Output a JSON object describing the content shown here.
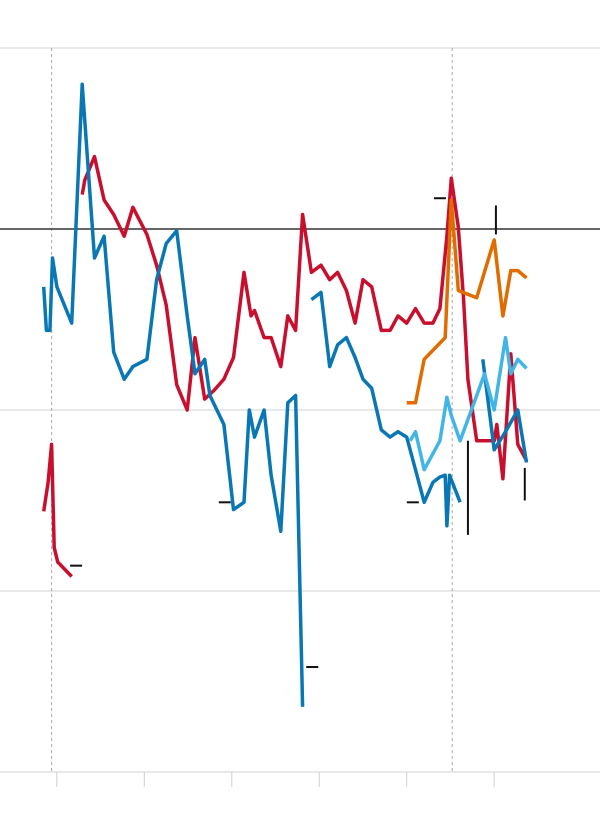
{
  "chart_data": {
    "type": "line",
    "xlim": [
      0.35,
      7.21
    ],
    "xticks": [
      1,
      2,
      3,
      4,
      5,
      6
    ],
    "ylim": [
      -3,
      1
    ],
    "yticks": [
      -3,
      -2,
      -1,
      0,
      1
    ],
    "grid": true,
    "baseline": 0,
    "vlines": [
      0.94,
      5.52
    ],
    "series": [
      {
        "color": "#c8102e",
        "x": [
          0.85,
          0.9,
          0.94,
          0.97,
          1.01,
          1.17,
          1.23,
          1.29,
          1.32,
          1.43,
          1.54,
          1.65,
          1.77,
          1.87,
          2.03,
          2.14,
          2.25,
          2.37,
          2.49,
          2.58,
          2.69,
          2.8,
          2.91,
          3.02,
          3.14,
          3.22,
          3.26,
          3.37,
          3.45,
          3.56,
          3.64,
          3.73,
          3.81,
          3.91,
          4.02,
          4.12,
          4.21,
          4.31,
          4.41,
          4.5,
          4.6,
          4.71,
          4.81,
          4.9,
          5.0,
          5.1,
          5.2,
          5.3,
          5.38,
          5.46,
          5.51,
          5.59,
          5.65,
          5.7,
          5.8,
          5.89,
          6.0,
          6.03,
          6.1,
          6.19,
          6.27,
          6.37
        ],
        "values": [
          -1.56,
          -1.4,
          -1.19,
          -1.76,
          -1.84,
          -1.92,
          null,
          0.19,
          0.27,
          0.4,
          0.16,
          0.08,
          -0.04,
          0.12,
          -0.03,
          -0.2,
          -0.42,
          -0.86,
          -1.0,
          -0.6,
          -0.94,
          -0.89,
          -0.83,
          -0.71,
          -0.24,
          -0.48,
          -0.45,
          -0.6,
          -0.6,
          -0.76,
          -0.48,
          -0.56,
          0.08,
          -0.24,
          -0.2,
          -0.28,
          -0.24,
          -0.34,
          -0.52,
          -0.28,
          -0.32,
          -0.56,
          -0.56,
          -0.48,
          -0.52,
          -0.44,
          -0.52,
          -0.52,
          -0.44,
          -0.04,
          0.28,
          0.01,
          -0.39,
          -0.83,
          -1.17,
          -1.17,
          -1.17,
          -1.08,
          -1.38,
          -0.69,
          -1.19,
          -1.28
        ]
      },
      {
        "color": "#0a77b5",
        "x": [
          0.85,
          0.88,
          0.92,
          0.95,
          1.0,
          1.17,
          1.29,
          1.43,
          1.54,
          1.65,
          1.77,
          1.87,
          2.03,
          2.14,
          2.25,
          2.37,
          2.49,
          2.58,
          2.69,
          2.75,
          2.91,
          3.02,
          3.14,
          3.2,
          3.26,
          3.37,
          3.45,
          3.56,
          3.64,
          3.73,
          3.81,
          3.86,
          3.91,
          4.02,
          4.12,
          4.21,
          4.31,
          4.41,
          4.5,
          4.6,
          4.71,
          4.81,
          4.9,
          5.0,
          5.1,
          5.2,
          5.3,
          5.38,
          5.44,
          5.46,
          5.49,
          5.61,
          5.75,
          5.87,
          6.0,
          6.13,
          6.27,
          6.37
        ],
        "values": [
          -0.32,
          -0.56,
          -0.56,
          -0.16,
          -0.32,
          -0.52,
          0.8,
          -0.16,
          -0.04,
          -0.68,
          -0.83,
          -0.76,
          -0.72,
          -0.28,
          -0.08,
          -0.01,
          -0.48,
          -0.8,
          -0.72,
          -0.92,
          -1.08,
          -1.55,
          -1.51,
          -1.0,
          -1.15,
          -1.0,
          -1.36,
          -1.67,
          -0.96,
          -0.92,
          -2.64,
          null,
          -0.39,
          -0.35,
          -0.76,
          -0.64,
          -0.6,
          -0.71,
          -0.83,
          -0.88,
          -1.11,
          -1.15,
          -1.12,
          -1.15,
          -1.33,
          -1.51,
          -1.4,
          -1.37,
          -1.36,
          -1.64,
          -1.36,
          -1.51,
          null,
          -0.72,
          -1.22,
          -1.12,
          -1.0,
          -1.29
        ]
      },
      {
        "color": "#41b6e6",
        "x": [
          5.04,
          5.1,
          5.2,
          5.38,
          5.46,
          5.51,
          5.61,
          5.8,
          5.89,
          6.0,
          6.13,
          6.19,
          6.27,
          6.37
        ],
        "values": [
          -1.17,
          -1.12,
          -1.33,
          -1.17,
          -0.93,
          -1.03,
          -1.17,
          -0.92,
          -0.8,
          -1.0,
          -0.6,
          -0.8,
          -0.72,
          -0.77
        ]
      },
      {
        "color": "#e06c00",
        "x": [
          5.0,
          5.1,
          5.2,
          5.44,
          5.51,
          5.59,
          5.8,
          6.0,
          6.1,
          6.19,
          6.27,
          6.37
        ],
        "values": [
          -0.96,
          -0.96,
          -0.72,
          -0.6,
          0.16,
          -0.34,
          -0.38,
          -0.06,
          -0.48,
          -0.23,
          -0.23,
          -0.27
        ]
      }
    ],
    "markers": {
      "x": [
        1.22,
        5.38,
        2.92,
        5.07,
        3.92
      ],
      "y": [
        -1.86,
        0.17,
        -1.51,
        -1.51,
        -2.42
      ]
    },
    "ranges": {
      "x": [
        6.02,
        5.7,
        6.35
      ],
      "low": [
        -0.03,
        -1.69,
        -1.5
      ],
      "high": [
        0.13,
        -1.17,
        -1.32
      ]
    }
  }
}
